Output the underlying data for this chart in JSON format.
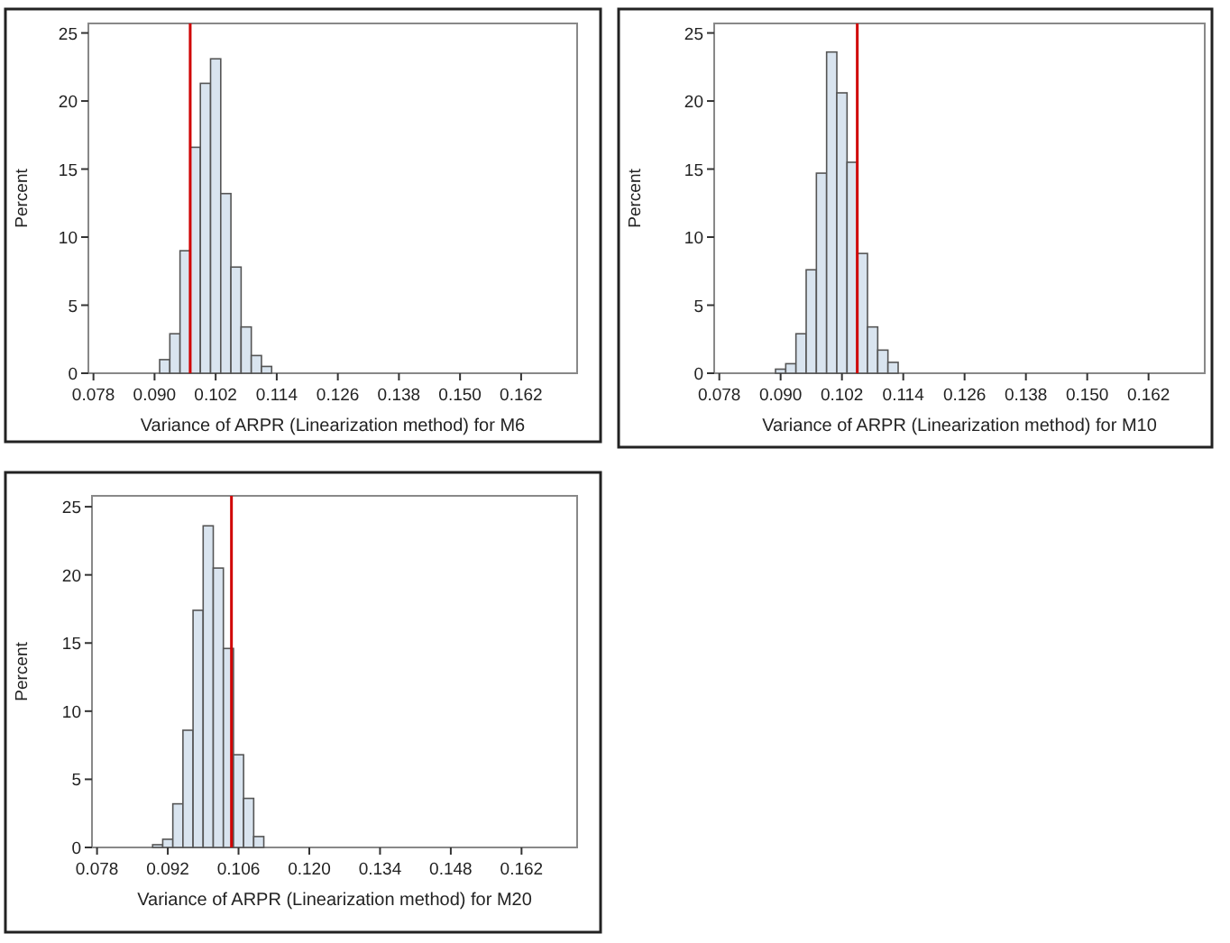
{
  "chart_data": [
    {
      "type": "histogram",
      "xlabel": "Variance of ARPR (Linearization method) for M6",
      "ylabel": "Percent",
      "color": "#d9e4ef",
      "bins": [
        0.091,
        0.093,
        0.095,
        0.097,
        0.099,
        0.101,
        0.103,
        0.105,
        0.107,
        0.109,
        0.111,
        0.113
      ],
      "values": [
        1,
        2.9,
        9,
        16.6,
        21.3,
        23.1,
        13.2,
        7.8,
        3.4,
        1.3,
        0.5
      ],
      "xlim": [
        0.077,
        0.173
      ],
      "xticks": [
        0.078,
        {
          "value": 0.09,
          "label": "0.090"
        },
        0.102,
        0.114,
        0.126,
        0.138,
        {
          "value": 0.15,
          "label": "0.150"
        },
        0.162
      ],
      "ylim": [
        0,
        25.7
      ],
      "yticks": [
        0,
        5,
        10,
        15,
        20,
        25
      ],
      "ref_lines": [
        {
          "axis": "x",
          "value": 0.097,
          "color": "#d00000"
        }
      ]
    },
    {
      "type": "histogram",
      "xlabel": "Variance of ARPR (Linearization method) for M10",
      "ylabel": "Percent",
      "color": "#d9e4ef",
      "bins": [
        0.089,
        0.091,
        0.093,
        0.095,
        0.097,
        0.099,
        0.101,
        0.103,
        0.105,
        0.107,
        0.109,
        0.111,
        0.113
      ],
      "values": [
        0.3,
        0.7,
        2.9,
        7.6,
        14.7,
        23.6,
        20.6,
        15.5,
        8.8,
        3.4,
        1.7,
        0.8
      ],
      "xlim": [
        0.077,
        0.173
      ],
      "xticks": [
        0.078,
        {
          "value": 0.09,
          "label": "0.090"
        },
        0.102,
        0.114,
        0.126,
        0.138,
        {
          "value": 0.15,
          "label": "0.150"
        },
        0.162
      ],
      "ylim": [
        0,
        25.7
      ],
      "yticks": [
        0,
        5,
        10,
        15,
        20,
        25
      ],
      "ref_lines": [
        {
          "axis": "x",
          "value": 0.105,
          "color": "#d00000"
        }
      ]
    },
    {
      "type": "histogram",
      "xlabel": "Variance of ARPR (Linearization method) for M20",
      "ylabel": "Percent",
      "color": "#d9e4ef",
      "bins": [
        0.089,
        0.091,
        0.093,
        0.095,
        0.097,
        0.099,
        0.101,
        0.103,
        0.105,
        0.107,
        0.109,
        0.111
      ],
      "values": [
        0.2,
        0.6,
        3.2,
        8.6,
        17.4,
        23.6,
        20.5,
        14.6,
        6.8,
        3.6,
        0.8
      ],
      "xlim": [
        0.077,
        0.173
      ],
      "xticks": [
        0.078,
        0.092,
        0.106,
        {
          "value": 0.12,
          "label": "0.120"
        },
        0.134,
        0.148,
        0.162
      ],
      "ylim": [
        0,
        25.8
      ],
      "yticks": [
        0,
        5,
        10,
        15,
        20,
        25
      ],
      "ref_lines": [
        {
          "axis": "x",
          "value": 0.1046,
          "color": "#d00000"
        }
      ]
    }
  ]
}
